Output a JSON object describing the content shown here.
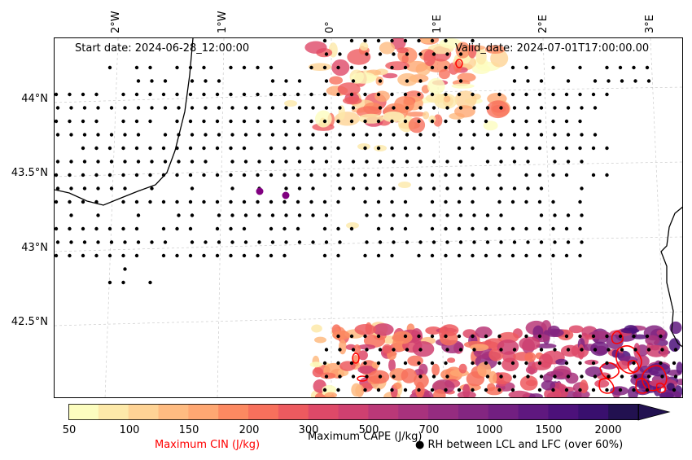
{
  "map": {
    "start_date": "Start date: 2024-06-28_12:00:00",
    "valid_date": "Valid_date: 2024-07-01T17:00:00.00",
    "lon_labels": [
      "2°W",
      "1°W",
      "0°",
      "1°E",
      "2°E",
      "3°E"
    ],
    "lat_labels": [
      "44°N",
      "43.5°N",
      "43°N",
      "42.5°N"
    ]
  },
  "colorbar": {
    "ticks": [
      "50",
      "100",
      "150",
      "200",
      "300",
      "500",
      "700",
      "1000",
      "1500",
      "2000"
    ],
    "cape_label": "Maximum CAPE (J/kg)",
    "cin_label": "Maximum CIN (J/kg)",
    "rh_label": "● RH between LCL and LFC (over 60%)",
    "colors": [
      "#fcfdbf",
      "#fde9a9",
      "#fed395",
      "#febb81",
      "#fea772",
      "#fc8961",
      "#f7705c",
      "#ed5a5f",
      "#de4968",
      "#cf4070",
      "#ba3878",
      "#a8327d",
      "#952c80",
      "#832681",
      "#721f81",
      "#5f187f",
      "#4c117a",
      "#390f6e",
      "#221150"
    ],
    "cin_color": "#ff0000",
    "rh_dot_color": "#000000",
    "highlight_dot_color": "#800080"
  }
}
